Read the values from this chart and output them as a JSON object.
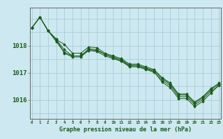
{
  "title": "Graphe pression niveau de la mer (hPa)",
  "background_color": "#cde8f0",
  "grid_color": "#a8cdd8",
  "line_color": "#1a5c1a",
  "marker_color": "#1a5c1a",
  "x_ticks": [
    0,
    1,
    2,
    3,
    4,
    5,
    6,
    7,
    8,
    9,
    10,
    11,
    12,
    13,
    14,
    15,
    16,
    17,
    18,
    19,
    20,
    21,
    22,
    23
  ],
  "y_ticks": [
    1016,
    1017,
    1018
  ],
  "ylim": [
    1015.3,
    1019.4
  ],
  "xlim": [
    -0.2,
    23.2
  ],
  "series1": [
    1018.65,
    1019.05,
    1018.55,
    1018.15,
    1017.75,
    1017.62,
    1017.62,
    1017.85,
    1017.82,
    1017.68,
    1017.58,
    1017.48,
    1017.28,
    1017.28,
    1017.18,
    1017.08,
    1016.78,
    1016.58,
    1016.18,
    1016.18,
    1015.88,
    1016.08,
    1016.38,
    1016.58
  ],
  "series2": [
    1018.65,
    1019.05,
    1018.55,
    1018.22,
    1018.05,
    1017.72,
    1017.72,
    1017.95,
    1017.92,
    1017.72,
    1017.62,
    1017.52,
    1017.32,
    1017.32,
    1017.22,
    1017.12,
    1016.82,
    1016.62,
    1016.22,
    1016.22,
    1015.92,
    1016.12,
    1016.42,
    1016.62
  ],
  "series3": [
    1018.65,
    1019.05,
    1018.55,
    1018.25,
    1017.72,
    1017.58,
    1017.58,
    1017.82,
    1017.78,
    1017.62,
    1017.52,
    1017.42,
    1017.22,
    1017.22,
    1017.12,
    1017.02,
    1016.72,
    1016.52,
    1016.12,
    1016.12,
    1015.82,
    1016.02,
    1016.32,
    1016.52
  ],
  "series_low": [
    1018.65,
    1019.05,
    1018.55,
    1018.22,
    1017.85,
    1017.62,
    1017.62,
    1017.88,
    1017.85,
    1017.68,
    1017.55,
    1017.45,
    1017.25,
    1017.25,
    1017.15,
    1017.05,
    1016.65,
    1016.45,
    1016.05,
    1016.05,
    1015.75,
    1015.95,
    1016.25,
    1016.55
  ]
}
